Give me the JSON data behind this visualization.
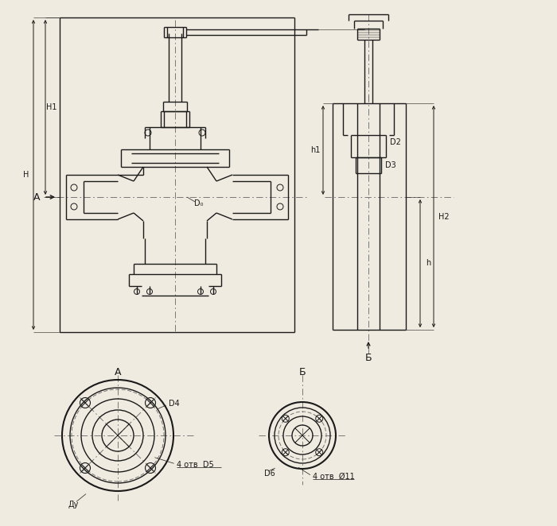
{
  "bg_color": "#f0ebe0",
  "line_color": "#1a1a1a",
  "dim_color": "#1a1a1a",
  "dash_color": "#666666",
  "labels": {
    "H": "Н",
    "H1": "Н1",
    "H2": "Н2",
    "h1": "h1",
    "h": "h",
    "D0": "D₀",
    "D2": "D2",
    "D3": "D3",
    "D4": "D4",
    "D5": "D5",
    "D6": "D6",
    "Dy": "Ду",
    "label_A": "А",
    "label_B": "Б",
    "holes_A": "4 отв  D5",
    "holes_B": "4 отв  Ø11"
  }
}
